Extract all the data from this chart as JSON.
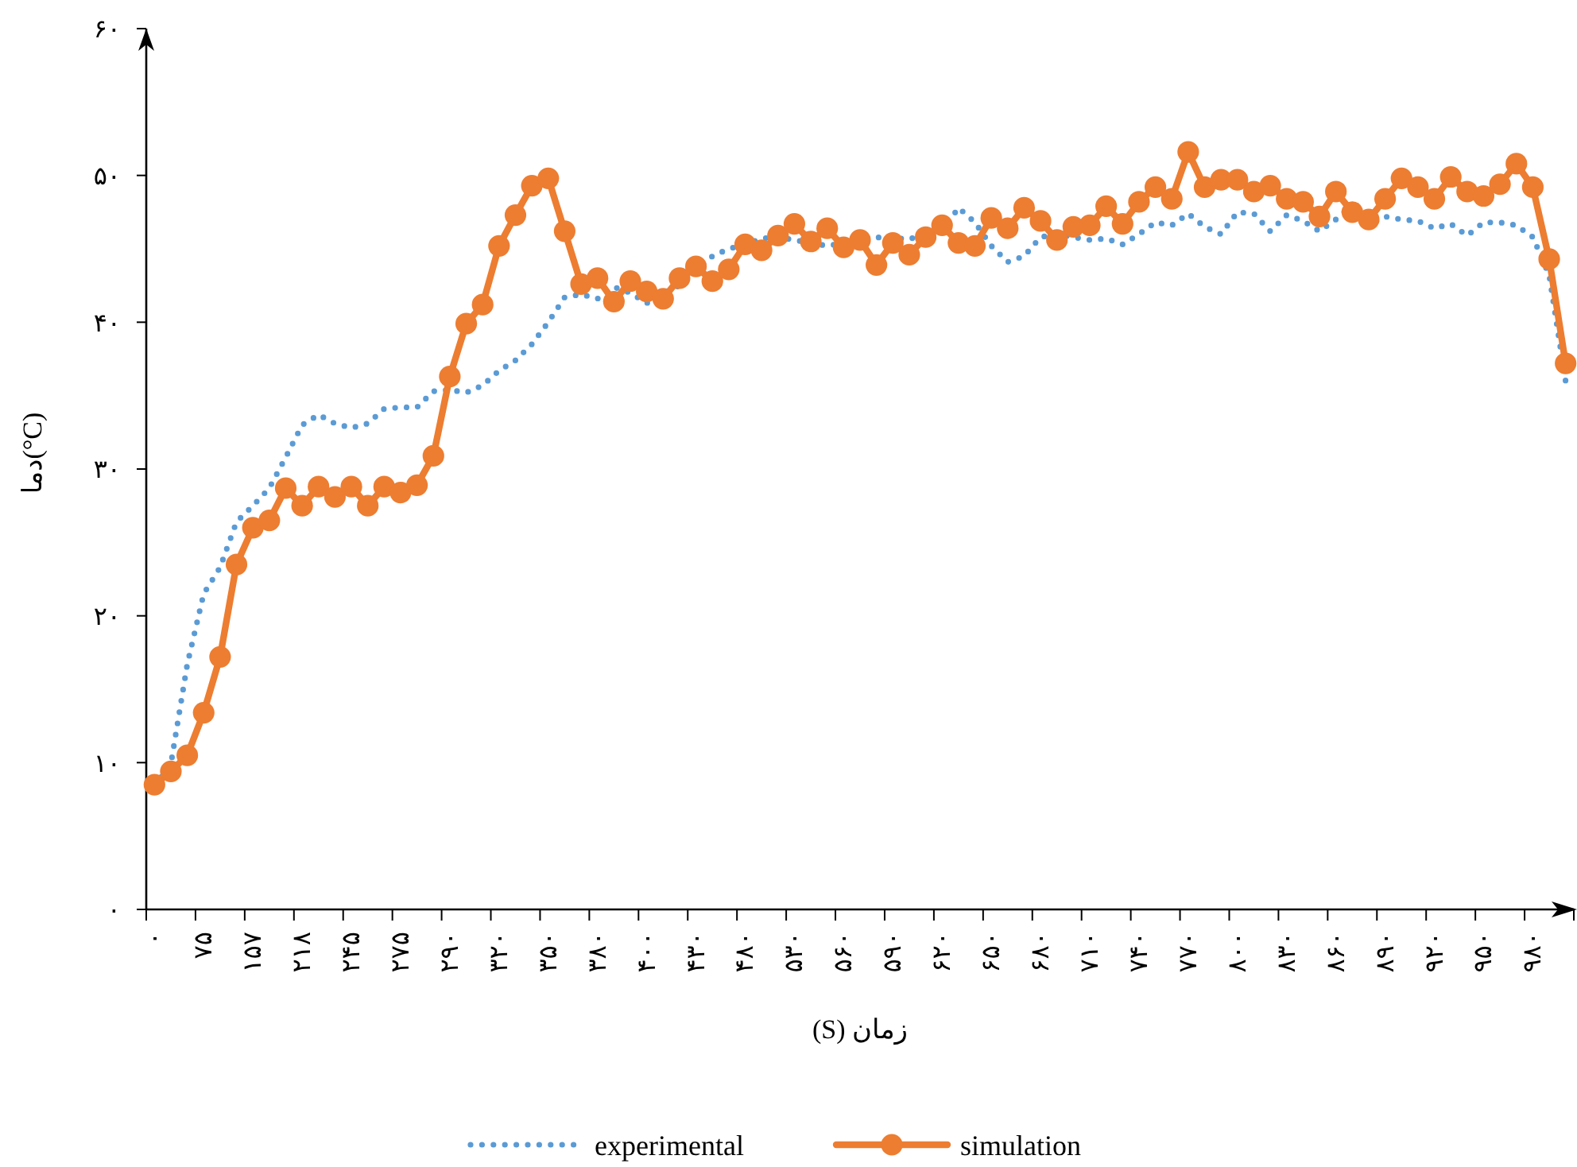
{
  "chart_data": {
    "type": "line",
    "xlabel": "زمان (S)",
    "ylabel": "دما(°C)",
    "categories": [
      "۰",
      null,
      null,
      "۷۵",
      null,
      null,
      "۱۵۷",
      null,
      null,
      "۲۱۸",
      null,
      null,
      "۲۴۵",
      null,
      null,
      "۲۷۵",
      null,
      null,
      "۲۹۰",
      null,
      null,
      "۳۲۰",
      null,
      null,
      "۳۵۰",
      null,
      null,
      "۳۸۰",
      null,
      null,
      "۴۰۰",
      null,
      null,
      "۴۳۰",
      null,
      null,
      "۴۸۰",
      null,
      null,
      "۵۳۰",
      null,
      null,
      "۵۶۰",
      null,
      null,
      "۵۹۰",
      null,
      null,
      "۶۲۰",
      null,
      null,
      "۶۵۰",
      null,
      null,
      "۶۸۰",
      null,
      null,
      "۷۱۰",
      null,
      null,
      "۷۴۰",
      null,
      null,
      "۷۷۰",
      null,
      null,
      "۸۰۰",
      null,
      null,
      "۸۳۰",
      null,
      null,
      "۸۶۰",
      null,
      null,
      "۸۹۰",
      null,
      null,
      "۹۲۰",
      null,
      null,
      "۹۵۰",
      null,
      null,
      "۹۸۰",
      null,
      null
    ],
    "ylim": [
      0,
      60
    ],
    "yticks": [
      {
        "value": 0,
        "label": "۰"
      },
      {
        "value": 10,
        "label": "۱۰"
      },
      {
        "value": 20,
        "label": "۲۰"
      },
      {
        "value": 30,
        "label": "۳۰"
      },
      {
        "value": 40,
        "label": "۴۰"
      },
      {
        "value": 50,
        "label": "۵۰"
      },
      {
        "value": 60,
        "label": "۶۰"
      }
    ],
    "grid": false,
    "legend": "bottom",
    "series": [
      {
        "name": "experimental",
        "color": "#5b9bd5",
        "line_style": "dotted",
        "marker": "none",
        "values": [
          8.4,
          9.9,
          16.7,
          21.5,
          23.3,
          26.4,
          27.5,
          28.7,
          30.8,
          33.0,
          33.7,
          33.1,
          32.8,
          33.1,
          34.1,
          34.2,
          34.2,
          35.3,
          35.4,
          35.2,
          35.7,
          36.7,
          37.4,
          38.5,
          40.0,
          41.7,
          41.9,
          41.6,
          42.4,
          42.0,
          41.3,
          42.0,
          42.5,
          43.5,
          44.5,
          45.0,
          45.3,
          45.7,
          45.8,
          45.6,
          45.4,
          45.2,
          45.4,
          45.6,
          45.8,
          45.6,
          45.8,
          45.4,
          46.2,
          47.8,
          46.8,
          45.2,
          44.1,
          44.5,
          45.8,
          46.0,
          45.8,
          45.6,
          45.7,
          45.3,
          46.0,
          46.8,
          46.6,
          47.4,
          46.5,
          46.0,
          47.5,
          47.4,
          46.2,
          47.3,
          46.9,
          46.2,
          47.0,
          48.0,
          46.6,
          47.2,
          47.0,
          46.9,
          46.4,
          46.7,
          45.9,
          46.8,
          46.8,
          46.6,
          45.8,
          43.2,
          36.0
        ]
      },
      {
        "name": "simulation",
        "color": "#ed7d31",
        "line_style": "solid",
        "marker": "circle",
        "values": [
          8.5,
          9.4,
          10.5,
          13.4,
          17.2,
          23.5,
          26.0,
          26.5,
          28.7,
          27.5,
          28.8,
          28.1,
          28.8,
          27.5,
          28.8,
          28.4,
          28.9,
          30.9,
          36.3,
          39.9,
          41.2,
          45.2,
          47.3,
          49.3,
          49.8,
          46.2,
          42.6,
          43.0,
          41.4,
          42.8,
          42.1,
          41.6,
          43.0,
          43.8,
          42.8,
          43.6,
          45.3,
          44.9,
          45.9,
          46.7,
          45.5,
          46.4,
          45.1,
          45.6,
          43.9,
          45.4,
          44.6,
          45.8,
          46.6,
          45.4,
          45.2,
          47.1,
          46.4,
          47.8,
          46.9,
          45.6,
          46.5,
          46.6,
          47.9,
          46.7,
          48.2,
          49.2,
          48.4,
          51.6,
          49.2,
          49.7,
          49.7,
          48.9,
          49.3,
          48.4,
          48.2,
          47.2,
          48.9,
          47.5,
          47.0,
          48.4,
          49.8,
          49.2,
          48.4,
          49.9,
          48.9,
          48.6,
          49.4,
          50.8,
          49.2,
          44.3,
          37.2
        ]
      }
    ]
  }
}
